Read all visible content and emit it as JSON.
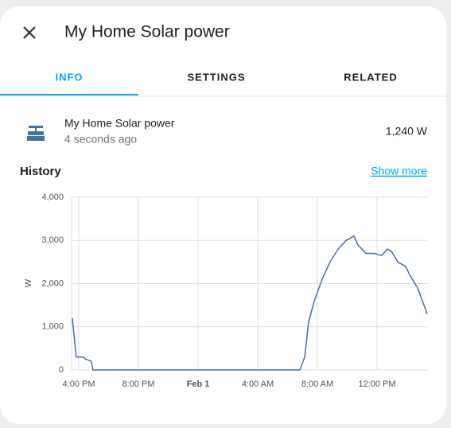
{
  "dialog": {
    "title": "My Home Solar power",
    "tabs": [
      "INFO",
      "SETTINGS",
      "RELATED"
    ],
    "entity": {
      "name": "My Home Solar power",
      "updated": "4 seconds ago",
      "state": "1,240 W"
    },
    "history": {
      "title": "History",
      "link": "Show more"
    }
  },
  "chart_data": {
    "type": "line",
    "y_label": "W",
    "x": [
      15.57,
      15.83,
      16.3,
      16.47,
      16.84,
      16.95,
      30.83,
      31.15,
      31.41,
      31.79,
      32.32,
      32.85,
      33.39,
      33.92,
      34.45,
      34.72,
      35.25,
      35.79,
      36.32,
      36.69,
      36.96,
      37.39,
      37.92,
      38.19,
      38.72,
      39.36
    ],
    "series": [
      {
        "name": "My Home Solar power",
        "color": "#4a6fa0",
        "values": [
          1200,
          300,
          300,
          250,
          200,
          0,
          0,
          300,
          1100,
          1600,
          2100,
          2500,
          2800,
          3000,
          3100,
          2900,
          2700,
          2700,
          2650,
          2800,
          2750,
          2500,
          2400,
          2200,
          1900,
          1300
        ]
      }
    ],
    "xlim": [
      15.52,
      39.36
    ],
    "xticks": [
      {
        "value": 16,
        "label": "4:00 PM"
      },
      {
        "value": 20,
        "label": "8:00 PM"
      },
      {
        "value": 24,
        "label": "Feb 1"
      },
      {
        "value": 28,
        "label": "4:00 AM"
      },
      {
        "value": 32,
        "label": "8:00 AM"
      },
      {
        "value": 36,
        "label": "12:00 PM"
      }
    ],
    "ylim": [
      0,
      4000
    ],
    "yticks": [
      0,
      {
        "value": 1000,
        "label": "1,000"
      },
      {
        "value": 2000,
        "label": "2,000"
      },
      {
        "value": 3000,
        "label": "3,000"
      },
      {
        "value": 4000,
        "label": "4,000"
      }
    ],
    "grid": true
  }
}
